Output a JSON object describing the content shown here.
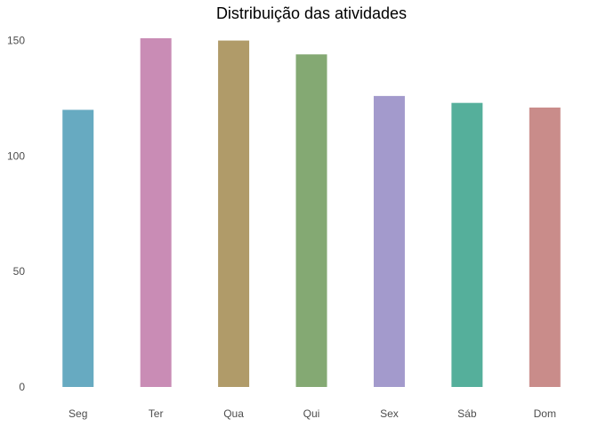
{
  "chart_data": {
    "type": "bar",
    "title": "Distribuição das atividades",
    "xlabel": "",
    "ylabel": "",
    "categories": [
      "Seg",
      "Ter",
      "Qua",
      "Qui",
      "Sex",
      "Sáb",
      "Dom"
    ],
    "values": [
      120,
      151,
      150,
      144,
      126,
      123,
      121
    ],
    "colors": [
      "#67aac1",
      "#c98cb5",
      "#b09b69",
      "#84a973",
      "#a39acc",
      "#55af9b",
      "#c98c8a"
    ],
    "yticks": [
      0,
      50,
      100,
      150
    ],
    "ylim": [
      0,
      156
    ],
    "grid": false,
    "legend": "none"
  }
}
